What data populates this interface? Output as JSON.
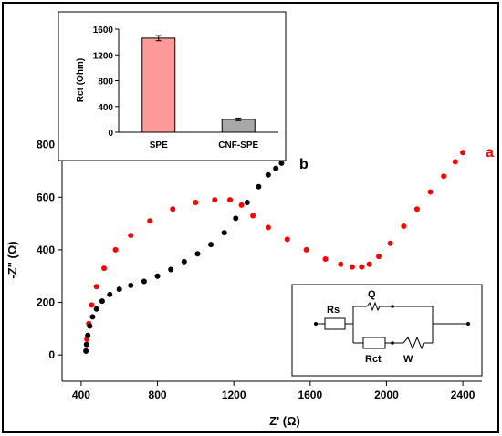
{
  "chart_data": [
    {
      "type": "scatter",
      "xlabel": "Z' (Ω)",
      "ylabel": "-Z'' (Ω)",
      "xlim": [
        300,
        2500
      ],
      "ylim": [
        -100,
        830
      ],
      "xticks": [
        "400",
        "800",
        "1200",
        "1600",
        "2000",
        "2400"
      ],
      "yticks": [
        "0",
        "200",
        "400",
        "600",
        "800"
      ],
      "series": [
        {
          "name": "a",
          "color": "#ff0000",
          "x": [
            425,
            430,
            440,
            455,
            480,
            520,
            580,
            660,
            760,
            880,
            1000,
            1100,
            1180,
            1240,
            1300,
            1380,
            1480,
            1580,
            1680,
            1760,
            1820,
            1870,
            1910,
            1960,
            2020,
            2090,
            2160,
            2230,
            2300,
            2360,
            2400
          ],
          "y": [
            15,
            60,
            120,
            190,
            260,
            330,
            400,
            455,
            510,
            555,
            580,
            590,
            590,
            570,
            530,
            485,
            440,
            400,
            365,
            345,
            335,
            335,
            345,
            375,
            425,
            490,
            555,
            620,
            680,
            735,
            770
          ]
        },
        {
          "name": "b",
          "color": "#000000",
          "x": [
            425,
            428,
            435,
            445,
            460,
            480,
            510,
            550,
            600,
            660,
            730,
            800,
            870,
            940,
            1010,
            1080,
            1150,
            1210,
            1270,
            1330,
            1380,
            1420,
            1450
          ],
          "y": [
            15,
            40,
            75,
            110,
            145,
            175,
            205,
            230,
            250,
            265,
            280,
            300,
            325,
            355,
            385,
            420,
            465,
            520,
            580,
            640,
            685,
            710,
            730
          ]
        }
      ]
    },
    {
      "type": "bar",
      "ylabel": "Rct (Ohm)",
      "categories": [
        "SPE",
        "CNF-SPE"
      ],
      "values": [
        1460,
        200
      ],
      "errors": [
        40,
        20
      ],
      "ylim": [
        0,
        1600
      ],
      "yticks": [
        "0",
        "400",
        "800",
        "1200",
        "1600"
      ],
      "colors": [
        "#ff9a9a",
        "#a8a8a8"
      ]
    }
  ],
  "circuit": {
    "labels": {
      "rs": "Rs",
      "q": "Q",
      "rct": "Rct",
      "w": "W"
    }
  }
}
